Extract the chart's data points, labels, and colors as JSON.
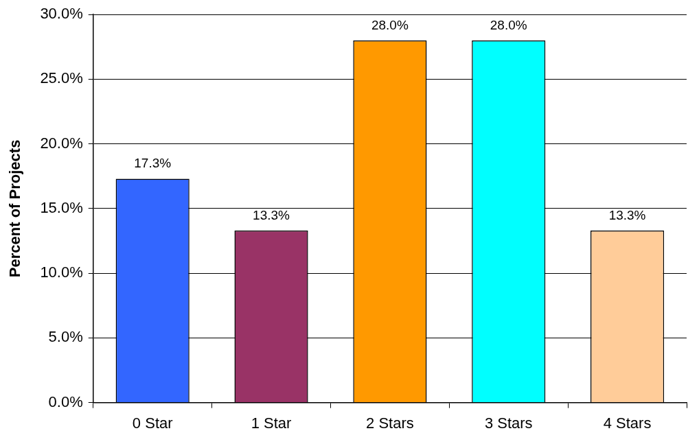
{
  "chart_data": {
    "type": "bar",
    "ylabel": "Percent of Projects",
    "categories": [
      "0 Star",
      "1 Star",
      "2 Stars",
      "3 Stars",
      "4 Stars"
    ],
    "values": [
      17.3,
      13.3,
      28.0,
      28.0,
      13.3
    ],
    "value_labels": [
      "17.3%",
      "13.3%",
      "28.0%",
      "28.0%",
      "13.3%"
    ],
    "colors": [
      "#3366ff",
      "#993366",
      "#ff9900",
      "#00ffff",
      "#ffcc99"
    ],
    "ylim": [
      0,
      30
    ],
    "yticks": [
      {
        "value": 0,
        "label": "0.0%"
      },
      {
        "value": 5,
        "label": "5.0%"
      },
      {
        "value": 10,
        "label": "10.0%"
      },
      {
        "value": 15,
        "label": "15.0%"
      },
      {
        "value": 20,
        "label": "20.0%"
      },
      {
        "value": 25,
        "label": "25.0%"
      },
      {
        "value": 30,
        "label": "30.0%"
      }
    ],
    "grid": "y",
    "legend": false
  }
}
